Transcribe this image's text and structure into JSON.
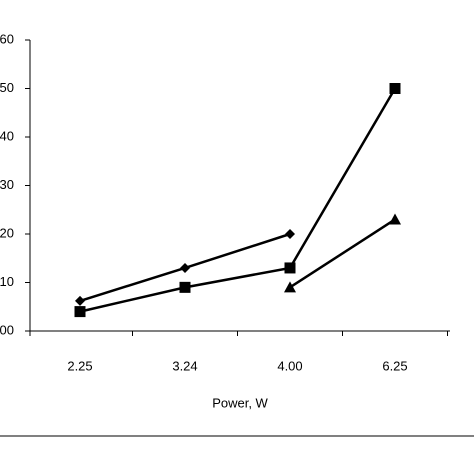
{
  "chart_data": {
    "type": "line",
    "x_label": "Power, W",
    "categories": [
      "2.25",
      "3.24",
      "4.00",
      "6.25"
    ],
    "series": [
      {
        "marker": "diamond",
        "color": "#000000",
        "values": [
          6.2,
          13,
          20,
          null
        ]
      },
      {
        "marker": "square",
        "color": "#000000",
        "values": [
          4,
          9,
          13,
          50
        ]
      },
      {
        "marker": "triangle",
        "color": "#000000",
        "values": [
          null,
          null,
          9,
          23
        ]
      }
    ],
    "ylim": [
      0,
      60
    ],
    "yticks": [
      {
        "value": 0,
        "label": "00"
      },
      10,
      20,
      30,
      40,
      50,
      60
    ]
  }
}
